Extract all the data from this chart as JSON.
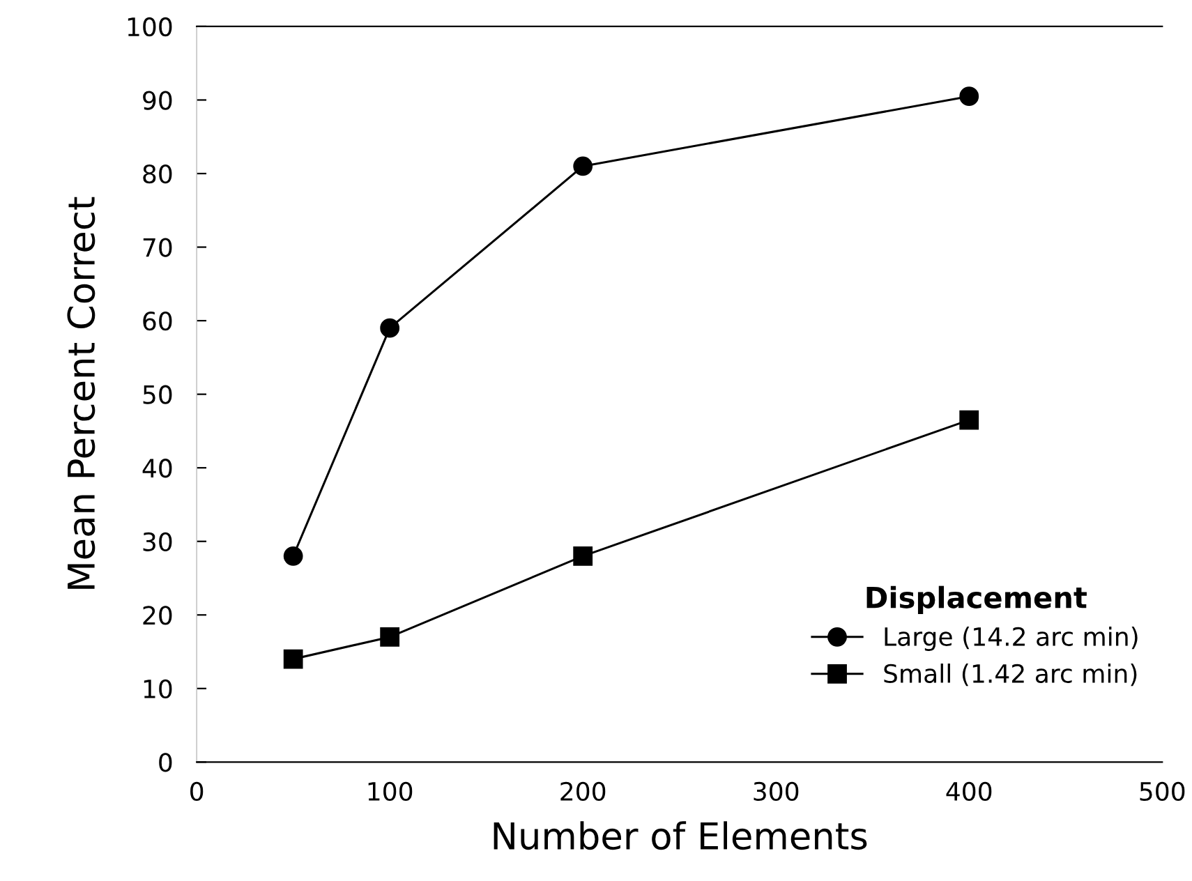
{
  "chart_data": {
    "type": "line",
    "xlabel": "Number of Elements",
    "ylabel": "Mean Percent Correct",
    "legend_title": "Displacement",
    "x": [
      50,
      100,
      200,
      400
    ],
    "series": [
      {
        "name": "Large (14.2 arc min)",
        "color": "#000000",
        "marker": "circle",
        "values": [
          28,
          59,
          81,
          90.5
        ]
      },
      {
        "name": "Small (1.42 arc min)",
        "color": "#000000",
        "marker": "square",
        "values": [
          14,
          17,
          28,
          46.5
        ]
      }
    ],
    "xlim": [
      0,
      500
    ],
    "xticks": [
      0,
      100,
      200,
      300,
      400,
      500
    ],
    "ylim": [
      0,
      100
    ],
    "yticks": [
      0,
      10,
      20,
      30,
      40,
      50,
      60,
      70,
      80,
      90,
      100
    ],
    "legend": "bottom right",
    "grid": false,
    "line_style": "solid"
  }
}
